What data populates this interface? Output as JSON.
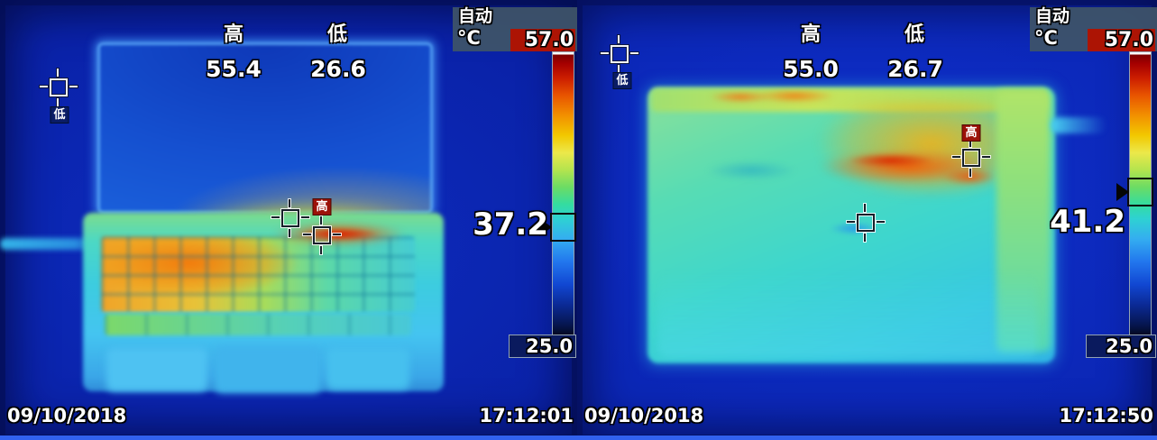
{
  "colors": {
    "scale_max_box": "#AC1404",
    "overlay_panel": "#42566A",
    "tag_high_bg": "#9C1208",
    "tag_low_bg": "#0A1C66",
    "scene_background": "#0B26B4",
    "bottom_strip": "#3161EE"
  },
  "frames": [
    {
      "view": "laptop-front-thermal",
      "high_label": "高",
      "high_value": "55.4",
      "low_label": "低",
      "low_value": "26.6",
      "mode": "自动",
      "unit": "°C",
      "scale_max": "57.0",
      "scale_min": "25.0",
      "center_temp": "37.2",
      "spot_high_tag": "高",
      "spot_low_tag": "低",
      "date": "09/10/2018",
      "time": "17:12:01"
    },
    {
      "view": "laptop-bottom-thermal",
      "high_label": "高",
      "high_value": "55.0",
      "low_label": "低",
      "low_value": "26.7",
      "mode": "自动",
      "unit": "°C",
      "scale_max": "57.0",
      "scale_min": "25.0",
      "center_temp": "41.2",
      "spot_high_tag": "高",
      "spot_low_tag": "低",
      "date": "09/10/2018",
      "time": "17:12:50"
    }
  ]
}
